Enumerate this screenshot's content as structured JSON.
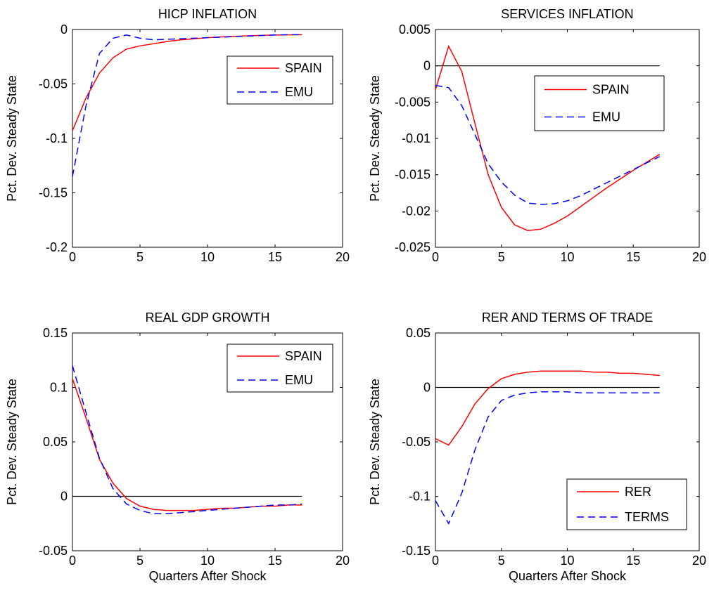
{
  "chart_data": [
    {
      "type": "line",
      "title": "HICP INFLATION",
      "xlabel": "",
      "ylabel": "Pct. Dev. Steady State",
      "xlim": [
        0,
        20
      ],
      "ylim": [
        -0.2,
        0
      ],
      "xticks": [
        0,
        5,
        10,
        15,
        20
      ],
      "xtick_labels": [
        "0",
        "5",
        "10",
        "15",
        "20"
      ],
      "yticks": [
        -0.2,
        -0.15,
        -0.1,
        -0.05,
        0
      ],
      "ytick_labels": [
        "-0.2",
        "-0.15",
        "-0.1",
        "-0.05",
        "0"
      ],
      "zero_line": false,
      "legend_position": "top-right",
      "x": [
        0,
        1,
        2,
        3,
        4,
        5,
        6,
        7,
        8,
        9,
        10,
        11,
        12,
        13,
        14,
        15,
        16,
        17
      ],
      "series": [
        {
          "name": "SPAIN",
          "color": "#ff0000",
          "style": "solid",
          "values": [
            -0.093,
            -0.063,
            -0.04,
            -0.026,
            -0.018,
            -0.015,
            -0.013,
            -0.011,
            -0.0095,
            -0.0085,
            -0.0075,
            -0.0068,
            -0.0063,
            -0.0058,
            -0.0054,
            -0.0051,
            -0.0049,
            -0.0048
          ]
        },
        {
          "name": "EMU",
          "color": "#0000ff",
          "style": "dashed",
          "values": [
            -0.135,
            -0.07,
            -0.022,
            -0.008,
            -0.005,
            -0.008,
            -0.0095,
            -0.009,
            -0.0085,
            -0.008,
            -0.0075,
            -0.007,
            -0.0065,
            -0.006,
            -0.0055,
            -0.005,
            -0.0048,
            -0.0047
          ]
        }
      ]
    },
    {
      "type": "line",
      "title": "SERVICES INFLATION",
      "xlabel": "",
      "ylabel": "Pct. Dev. Steady State",
      "xlim": [
        0,
        20
      ],
      "ylim": [
        -0.025,
        0.005
      ],
      "xticks": [
        0,
        5,
        10,
        15,
        20
      ],
      "xtick_labels": [
        "0",
        "5",
        "10",
        "15",
        "20"
      ],
      "yticks": [
        -0.025,
        -0.02,
        -0.015,
        -0.01,
        -0.005,
        0,
        0.005
      ],
      "ytick_labels": [
        "-0.025",
        "-0.02",
        "-0.015",
        "-0.01",
        "-0.005",
        "0",
        "0.005"
      ],
      "zero_line": true,
      "legend_position": "top-right",
      "x": [
        0,
        1,
        2,
        3,
        4,
        5,
        6,
        7,
        8,
        9,
        10,
        11,
        12,
        13,
        14,
        15,
        16,
        17
      ],
      "series": [
        {
          "name": "SPAIN",
          "color": "#ff0000",
          "style": "solid",
          "values": [
            -0.0033,
            0.0027,
            -0.0008,
            -0.008,
            -0.015,
            -0.0195,
            -0.0219,
            -0.0227,
            -0.0225,
            -0.0217,
            -0.0207,
            -0.0194,
            -0.0181,
            -0.0168,
            -0.0156,
            -0.0144,
            -0.0133,
            -0.0122
          ]
        },
        {
          "name": "EMU",
          "color": "#0000ff",
          "style": "dashed",
          "values": [
            -0.0027,
            -0.003,
            -0.0055,
            -0.0095,
            -0.0135,
            -0.016,
            -0.0178,
            -0.0189,
            -0.0191,
            -0.019,
            -0.0186,
            -0.0179,
            -0.017,
            -0.0161,
            -0.0152,
            -0.0143,
            -0.0134,
            -0.0125
          ]
        }
      ]
    },
    {
      "type": "line",
      "title": "REAL GDP GROWTH",
      "xlabel": "Quarters After Shock",
      "ylabel": "Pct. Dev. Steady State",
      "xlim": [
        0,
        20
      ],
      "ylim": [
        -0.05,
        0.15
      ],
      "xticks": [
        0,
        5,
        10,
        15,
        20
      ],
      "xtick_labels": [
        "0",
        "5",
        "10",
        "15",
        "20"
      ],
      "yticks": [
        -0.05,
        0,
        0.05,
        0.1,
        0.15
      ],
      "ytick_labels": [
        "-0.05",
        "0",
        "0.05",
        "0.1",
        "0.15"
      ],
      "zero_line": true,
      "legend_position": "top-right",
      "x": [
        0,
        1,
        2,
        3,
        4,
        5,
        6,
        7,
        8,
        9,
        10,
        11,
        12,
        13,
        14,
        15,
        16,
        17
      ],
      "series": [
        {
          "name": "SPAIN",
          "color": "#ff0000",
          "style": "solid",
          "values": [
            0.108,
            0.072,
            0.034,
            0.012,
            -0.002,
            -0.009,
            -0.012,
            -0.013,
            -0.013,
            -0.013,
            -0.012,
            -0.011,
            -0.011,
            -0.01,
            -0.009,
            -0.009,
            -0.008,
            -0.008
          ]
        },
        {
          "name": "EMU",
          "color": "#0000ff",
          "style": "dashed",
          "values": [
            0.12,
            0.077,
            0.035,
            0.007,
            -0.007,
            -0.013,
            -0.016,
            -0.016,
            -0.015,
            -0.014,
            -0.013,
            -0.012,
            -0.011,
            -0.01,
            -0.009,
            -0.008,
            -0.008,
            -0.007
          ]
        }
      ]
    },
    {
      "type": "line",
      "title": "RER AND TERMS OF TRADE",
      "xlabel": "Quarters After Shock",
      "ylabel": "Pct. Dev. Steady State",
      "xlim": [
        0,
        20
      ],
      "ylim": [
        -0.15,
        0.05
      ],
      "xticks": [
        0,
        5,
        10,
        15,
        20
      ],
      "xtick_labels": [
        "0",
        "5",
        "10",
        "15",
        "20"
      ],
      "yticks": [
        -0.15,
        -0.1,
        -0.05,
        0,
        0.05
      ],
      "ytick_labels": [
        "-0.15",
        "-0.1",
        "-0.05",
        "0",
        "0.05"
      ],
      "zero_line": true,
      "legend_position": "bottom-right",
      "x": [
        0,
        1,
        2,
        3,
        4,
        5,
        6,
        7,
        8,
        9,
        10,
        11,
        12,
        13,
        14,
        15,
        16,
        17
      ],
      "series": [
        {
          "name": "RER",
          "color": "#ff0000",
          "style": "solid",
          "values": [
            -0.047,
            -0.053,
            -0.036,
            -0.015,
            -0.001,
            0.008,
            0.012,
            0.014,
            0.015,
            0.015,
            0.015,
            0.015,
            0.014,
            0.014,
            0.013,
            0.013,
            0.012,
            0.011
          ]
        },
        {
          "name": "TERMS",
          "color": "#0000ff",
          "style": "dashed",
          "values": [
            -0.104,
            -0.125,
            -0.097,
            -0.057,
            -0.027,
            -0.012,
            -0.007,
            -0.005,
            -0.004,
            -0.004,
            -0.004,
            -0.005,
            -0.005,
            -0.005,
            -0.005,
            -0.005,
            -0.005,
            -0.005
          ]
        }
      ]
    }
  ]
}
